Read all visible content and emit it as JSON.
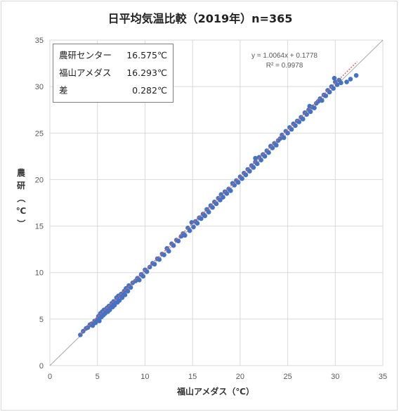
{
  "chart_data": {
    "type": "scatter",
    "title": "日平均気温比較（2019年）n=365",
    "xlabel": "福山アメダス（℃）",
    "ylabel": "農研（℃）",
    "xlim": [
      0,
      35
    ],
    "ylim": [
      0,
      35
    ],
    "x_ticks": [
      "0",
      "5",
      "10",
      "15",
      "20",
      "25",
      "30",
      "35"
    ],
    "y_ticks": [
      "0",
      "5",
      "10",
      "15",
      "20",
      "25",
      "30",
      "35"
    ],
    "grid": true,
    "point_color": "#4472c4",
    "trendline_color": "#e06666",
    "reference_line": "y = x",
    "trendline": {
      "equation": "y = 1.0064x + 0.1778",
      "r2": "R² = 0.9978",
      "slope": 1.0064,
      "intercept": 0.1778
    },
    "series": [
      {
        "name": "",
        "points": [
          [
            3.2,
            3.3
          ],
          [
            3.5,
            3.7
          ],
          [
            3.8,
            4.0
          ],
          [
            4.0,
            4.1
          ],
          [
            4.2,
            4.4
          ],
          [
            4.4,
            4.5
          ],
          [
            4.5,
            4.3
          ],
          [
            4.7,
            4.8
          ],
          [
            4.8,
            4.6
          ],
          [
            5.0,
            5.0
          ],
          [
            5.1,
            5.3
          ],
          [
            5.2,
            4.8
          ],
          [
            5.3,
            5.6
          ],
          [
            5.4,
            5.2
          ],
          [
            5.5,
            5.8
          ],
          [
            5.6,
            5.4
          ],
          [
            5.7,
            6.0
          ],
          [
            5.8,
            5.6
          ],
          [
            6.0,
            6.2
          ],
          [
            6.1,
            5.8
          ],
          [
            6.2,
            6.4
          ],
          [
            6.3,
            6.0
          ],
          [
            6.5,
            6.7
          ],
          [
            6.6,
            6.3
          ],
          [
            6.7,
            6.9
          ],
          [
            6.8,
            6.5
          ],
          [
            7.0,
            7.3
          ],
          [
            7.1,
            6.8
          ],
          [
            7.2,
            7.5
          ],
          [
            7.3,
            7.0
          ],
          [
            7.5,
            7.7
          ],
          [
            7.6,
            7.3
          ],
          [
            7.8,
            8.0
          ],
          [
            7.9,
            7.6
          ],
          [
            8.0,
            8.3
          ],
          [
            8.2,
            8.0
          ],
          [
            8.3,
            8.6
          ],
          [
            8.5,
            8.4
          ],
          [
            8.7,
            8.9
          ],
          [
            9.0,
            9.1
          ],
          [
            9.2,
            9.4
          ],
          [
            9.4,
            9.2
          ],
          [
            9.6,
            9.8
          ],
          [
            9.8,
            9.6
          ],
          [
            10.0,
            10.3
          ],
          [
            10.2,
            10.1
          ],
          [
            10.5,
            10.6
          ],
          [
            10.8,
            11.0
          ],
          [
            11.0,
            10.9
          ],
          [
            11.3,
            11.5
          ],
          [
            11.5,
            11.4
          ],
          [
            11.8,
            12.0
          ],
          [
            12.0,
            11.9
          ],
          [
            12.3,
            12.6
          ],
          [
            12.5,
            12.3
          ],
          [
            12.8,
            13.1
          ],
          [
            13.0,
            12.9
          ],
          [
            13.3,
            13.5
          ],
          [
            13.5,
            13.4
          ],
          [
            13.8,
            13.9
          ],
          [
            14.0,
            14.2
          ],
          [
            14.2,
            14.0
          ],
          [
            14.5,
            14.8
          ],
          [
            14.7,
            14.5
          ],
          [
            14.9,
            15.4
          ],
          [
            15.1,
            14.9
          ],
          [
            15.3,
            15.5
          ],
          [
            15.5,
            15.3
          ],
          [
            15.7,
            15.9
          ],
          [
            15.9,
            15.8
          ],
          [
            16.1,
            16.3
          ],
          [
            16.3,
            16.1
          ],
          [
            16.5,
            16.8
          ],
          [
            16.7,
            16.5
          ],
          [
            16.9,
            17.2
          ],
          [
            17.1,
            17.0
          ],
          [
            17.3,
            17.6
          ],
          [
            17.5,
            17.4
          ],
          [
            17.7,
            18.0
          ],
          [
            17.9,
            17.8
          ],
          [
            18.0,
            18.4
          ],
          [
            18.2,
            18.1
          ],
          [
            18.4,
            18.7
          ],
          [
            18.6,
            18.5
          ],
          [
            18.8,
            19.0
          ],
          [
            19.0,
            18.8
          ],
          [
            19.2,
            19.6
          ],
          [
            19.4,
            19.4
          ],
          [
            19.6,
            19.9
          ],
          [
            19.8,
            19.7
          ],
          [
            20.0,
            20.3
          ],
          [
            20.2,
            20.1
          ],
          [
            20.4,
            20.7
          ],
          [
            20.6,
            20.5
          ],
          [
            20.8,
            21.1
          ],
          [
            21.0,
            20.9
          ],
          [
            21.2,
            21.5
          ],
          [
            21.4,
            21.3
          ],
          [
            21.6,
            21.9
          ],
          [
            21.8,
            21.7
          ],
          [
            22.0,
            22.4
          ],
          [
            22.2,
            22.1
          ],
          [
            22.4,
            22.7
          ],
          [
            22.6,
            22.5
          ],
          [
            22.8,
            23.1
          ],
          [
            23.0,
            22.9
          ],
          [
            23.2,
            23.6
          ],
          [
            23.4,
            23.4
          ],
          [
            23.6,
            23.9
          ],
          [
            23.8,
            23.7
          ],
          [
            24.0,
            24.2
          ],
          [
            24.2,
            24.4
          ],
          [
            24.4,
            24.8
          ],
          [
            24.6,
            24.5
          ],
          [
            24.8,
            25.2
          ],
          [
            25.0,
            25.0
          ],
          [
            25.2,
            25.6
          ],
          [
            25.4,
            25.4
          ],
          [
            25.6,
            26.0
          ],
          [
            25.8,
            25.8
          ],
          [
            26.0,
            26.3
          ],
          [
            26.2,
            26.2
          ],
          [
            26.4,
            26.7
          ],
          [
            26.6,
            26.5
          ],
          [
            26.8,
            27.2
          ],
          [
            27.0,
            27.0
          ],
          [
            27.2,
            27.5
          ],
          [
            27.4,
            27.3
          ],
          [
            27.6,
            27.8
          ],
          [
            27.8,
            27.7
          ],
          [
            28.0,
            28.2
          ],
          [
            28.2,
            28.4
          ],
          [
            28.4,
            28.7
          ],
          [
            28.6,
            28.5
          ],
          [
            28.8,
            29.1
          ],
          [
            29.0,
            29.0
          ],
          [
            29.2,
            29.6
          ],
          [
            29.4,
            29.4
          ],
          [
            29.6,
            30.0
          ],
          [
            29.8,
            29.8
          ],
          [
            30.0,
            30.5
          ],
          [
            30.2,
            30.2
          ],
          [
            30.4,
            30.7
          ],
          [
            30.6,
            30.4
          ],
          [
            31.2,
            30.5
          ],
          [
            31.6,
            30.8
          ],
          [
            32.2,
            31.2
          ],
          [
            29.9,
            30.9
          ],
          [
            27.3,
            27.9
          ],
          [
            21.6,
            22.3
          ]
        ]
      }
    ]
  },
  "stats_box": {
    "rows": [
      {
        "label": "農研センター",
        "value": "16.575℃"
      },
      {
        "label": "福山アメダス",
        "value": "16.293℃"
      },
      {
        "label": "差",
        "value": "0.282℃"
      }
    ]
  }
}
